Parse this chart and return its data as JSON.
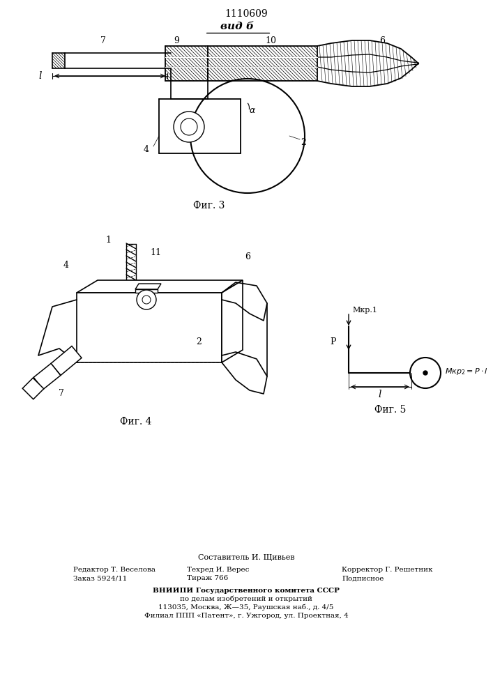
{
  "patent_number": "1110609",
  "view_label": "вид б",
  "fig3_label": "Фиг. 3",
  "fig4_label": "Фиг. 4",
  "fig5_label": "Фиг. 5",
  "footer_line1_left": "Редактор Т. Веселова",
  "footer_line2_left": "Заказ 5924/11",
  "footer_line1_center": "Составитель И. Щивьев",
  "footer_line2_center": "Техред И. Верес",
  "footer_line3_center": "Тираж 766",
  "footer_line2_right": "Корректор Г. Решетник",
  "footer_line3_right": "Подписное",
  "footer_vniip1": "ВНИИПИ Государственного комитета СССР",
  "footer_vniip2": "по делам изобретений и открытий",
  "footer_vniip3": "113035, Москва, Ж—35, Раушская наб., д. 4/5",
  "footer_vniip4": "Филиал ППП «Патент», г. Ужгород, ул. Проектная, 4",
  "bg_color": "#ffffff",
  "line_color": "#000000"
}
